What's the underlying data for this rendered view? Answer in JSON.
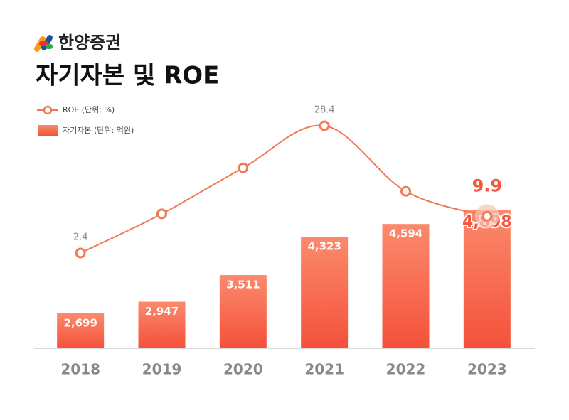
{
  "brand": "한양증권",
  "chart_data": {
    "type": "bar",
    "title": "자기자본 및 ROE",
    "categories": [
      "2018",
      "2019",
      "2020",
      "2021",
      "2022",
      "2023"
    ],
    "series": [
      {
        "name": "자기자본 (단위: 억원)",
        "color": "#f4573f",
        "values": [
          2699,
          2947,
          3511,
          4323,
          4594,
          4898
        ],
        "value_labels": [
          "2,699",
          "2,947",
          "3,511",
          "4,323",
          "4,594",
          "4,898"
        ]
      },
      {
        "name": "ROE (단위: %)",
        "type": "line",
        "axis": "y2",
        "color": "#f07a55",
        "values": [
          2.4,
          10.4,
          19.8,
          28.4,
          15.0,
          9.9
        ],
        "value_labels": [
          "2.4",
          null,
          null,
          "28.4",
          null,
          "9.9"
        ]
      }
    ]
  }
}
